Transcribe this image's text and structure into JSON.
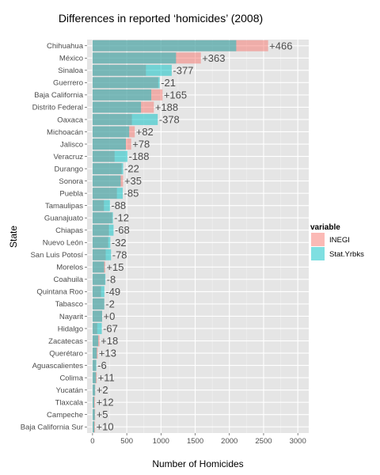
{
  "chart_data": {
    "type": "bar",
    "title": "Differences in reported ‘homicides’ (2008)",
    "xlabel": "Number of Homicides",
    "ylabel": "State",
    "xlim": [
      0,
      3000
    ],
    "xticks": [
      0,
      500,
      1000,
      1500,
      2000,
      2500,
      3000
    ],
    "grid": true,
    "legend": {
      "title": "variable",
      "position": "right"
    },
    "categories": [
      "Chihuahua",
      "México",
      "Sinaloa",
      "Guerrero",
      "Baja California",
      "Distrito Federal",
      "Oaxaca",
      "Michoacán",
      "Jalisco",
      "Veracruz",
      "Durango",
      "Sonora",
      "Puebla",
      "Tamaulipas",
      "Guanajuato",
      "Chiapas",
      "Nuevo León",
      "San Luis Potosí",
      "Morelos",
      "Coahuila",
      "Quintana Roo",
      "Tabasco",
      "Nayarit",
      "Hidalgo",
      "Zacatecas",
      "Querétaro",
      "Aguascalientes",
      "Colima",
      "Yucatán",
      "Tlaxcala",
      "Campeche",
      "Baja California Sur"
    ],
    "series": [
      {
        "name": "INEGI",
        "color": "#F8766D",
        "values": [
          2566,
          1583,
          780,
          960,
          1023,
          896,
          575,
          617,
          565,
          322,
          425,
          446,
          356,
          166,
          286,
          239,
          228,
          192,
          185,
          180,
          124,
          170,
          140,
          68,
          101,
          75,
          49,
          61,
          39,
          37,
          38,
          36
        ]
      },
      {
        "name": "Stat.Yrbks",
        "color": "#00BFC4",
        "values": [
          2100,
          1220,
          1157,
          981,
          858,
          708,
          953,
          535,
          487,
          510,
          447,
          411,
          441,
          254,
          298,
          307,
          260,
          270,
          170,
          188,
          173,
          172,
          140,
          135,
          83,
          62,
          55,
          50,
          37,
          25,
          33,
          26
        ]
      }
    ],
    "labels": [
      "+466",
      "+363",
      "-377",
      "-21",
      "+165",
      "+188",
      "-378",
      "+82",
      "+78",
      "-188",
      "-22",
      "+35",
      "-85",
      "-88",
      "-12",
      "-68",
      "-32",
      "-78",
      "+15",
      "-8",
      "-49",
      "-2",
      "+0",
      "-67",
      "+18",
      "+13",
      "-6",
      "+11",
      "+2",
      "+12",
      "+5",
      "+10"
    ]
  }
}
